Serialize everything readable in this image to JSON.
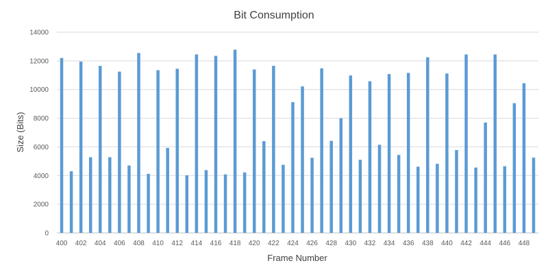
{
  "chart_data": {
    "type": "bar",
    "title": "Bit Consumption",
    "xlabel": "Frame Number",
    "ylabel": "Size (Bits)",
    "ylim": [
      0,
      14000
    ],
    "yticks": [
      0,
      2000,
      4000,
      6000,
      8000,
      10000,
      12000,
      14000
    ],
    "grid": true,
    "legend": "none",
    "bar_color": "#5b9bd5",
    "categories": [
      "400",
      "401",
      "402",
      "403",
      "404",
      "405",
      "406",
      "407",
      "408",
      "409",
      "410",
      "411",
      "412",
      "413",
      "414",
      "415",
      "416",
      "417",
      "418",
      "419",
      "420",
      "421",
      "422",
      "423",
      "424",
      "425",
      "426",
      "427",
      "428",
      "429",
      "430",
      "431",
      "432",
      "433",
      "434",
      "435",
      "436",
      "437",
      "438",
      "439",
      "440",
      "441",
      "442",
      "443",
      "444",
      "445",
      "446",
      "447",
      "448",
      "449"
    ],
    "x_tick_labels": [
      "400",
      "402",
      "404",
      "406",
      "408",
      "410",
      "412",
      "414",
      "416",
      "418",
      "420",
      "422",
      "424",
      "426",
      "428",
      "430",
      "432",
      "434",
      "436",
      "438",
      "440",
      "442",
      "444",
      "446",
      "448"
    ],
    "values": [
      12200,
      4300,
      11950,
      5280,
      11650,
      5280,
      11250,
      4700,
      12550,
      4120,
      11350,
      5930,
      11450,
      4020,
      12450,
      4380,
      12350,
      4080,
      12780,
      4220,
      11400,
      6400,
      11650,
      4750,
      9120,
      10220,
      5240,
      11480,
      6420,
      8000,
      10980,
      5100,
      10580,
      6150,
      11080,
      5440,
      11160,
      4620,
      12250,
      4820,
      11120,
      5780,
      12450,
      4560,
      7700,
      12450,
      4650,
      9050,
      10440,
      5250
    ]
  }
}
